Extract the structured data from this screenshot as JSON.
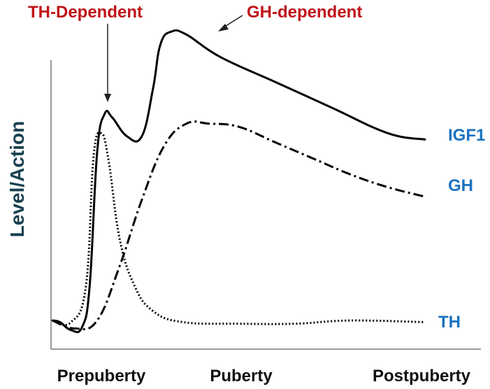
{
  "chart_data": {
    "type": "line",
    "title": "",
    "ylabel": "Level/Action",
    "xlabel": "",
    "categories": [
      "Prepuberty",
      "Puberty",
      "Postpuberty"
    ],
    "grid": false,
    "series": [
      {
        "name": "IGF1",
        "line_style": "solid",
        "color": "#000000",
        "points": [
          [
            0.0,
            0.09
          ],
          [
            0.02,
            0.085
          ],
          [
            0.05,
            0.06
          ],
          [
            0.08,
            0.07
          ],
          [
            0.1,
            0.2
          ],
          [
            0.12,
            0.62
          ],
          [
            0.14,
            0.74
          ],
          [
            0.16,
            0.73
          ],
          [
            0.2,
            0.67
          ],
          [
            0.24,
            0.67
          ],
          [
            0.27,
            0.82
          ],
          [
            0.29,
            0.96
          ],
          [
            0.32,
            1.0
          ],
          [
            0.36,
            0.99
          ],
          [
            0.45,
            0.92
          ],
          [
            0.6,
            0.84
          ],
          [
            0.75,
            0.76
          ],
          [
            0.9,
            0.68
          ],
          [
            1.0,
            0.66
          ]
        ]
      },
      {
        "name": "GH",
        "line_style": "dashdot",
        "color": "#000000",
        "points": [
          [
            0.0,
            0.09
          ],
          [
            0.06,
            0.065
          ],
          [
            0.12,
            0.09
          ],
          [
            0.18,
            0.26
          ],
          [
            0.24,
            0.47
          ],
          [
            0.3,
            0.64
          ],
          [
            0.36,
            0.71
          ],
          [
            0.42,
            0.71
          ],
          [
            0.5,
            0.7
          ],
          [
            0.6,
            0.65
          ],
          [
            0.7,
            0.6
          ],
          [
            0.8,
            0.55
          ],
          [
            0.9,
            0.51
          ],
          [
            1.0,
            0.48
          ]
        ]
      },
      {
        "name": "TH",
        "line_style": "dotted",
        "color": "#000000",
        "points": [
          [
            0.0,
            0.09
          ],
          [
            0.05,
            0.085
          ],
          [
            0.09,
            0.2
          ],
          [
            0.11,
            0.6
          ],
          [
            0.13,
            0.68
          ],
          [
            0.15,
            0.6
          ],
          [
            0.18,
            0.35
          ],
          [
            0.22,
            0.2
          ],
          [
            0.27,
            0.12
          ],
          [
            0.35,
            0.085
          ],
          [
            0.5,
            0.08
          ],
          [
            0.65,
            0.08
          ],
          [
            0.8,
            0.09
          ],
          [
            1.0,
            0.085
          ]
        ]
      }
    ],
    "annotations": [
      {
        "text": "TH-Dependent",
        "color": "#c0141a"
      },
      {
        "text": "GH-dependent",
        "color": "#c0141a"
      }
    ],
    "label_color": "#1b72c0",
    "ylabel_color": "#18404f"
  }
}
